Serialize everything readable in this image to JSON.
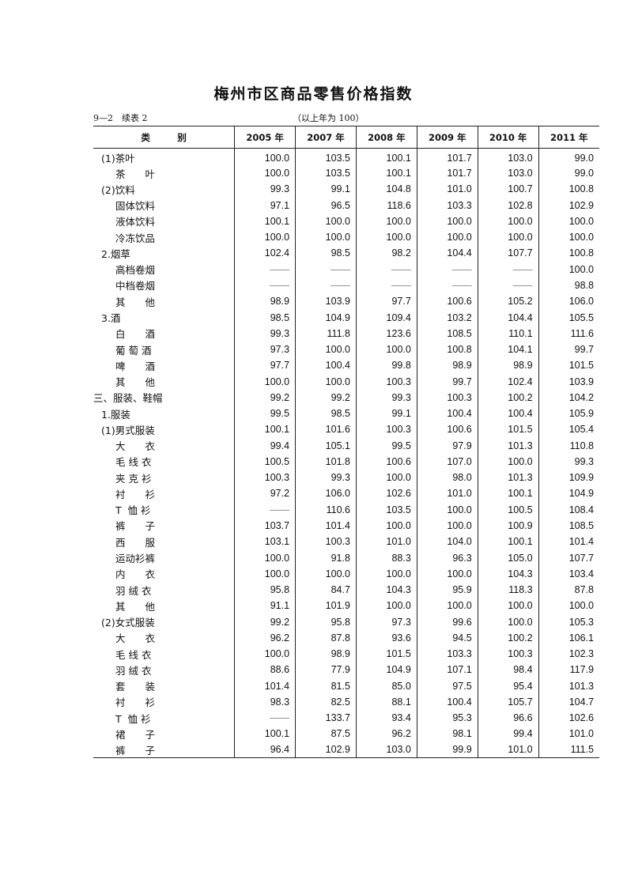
{
  "title": "梅州市区商品零售价格指数",
  "table_no": "9—2　续表 2",
  "base_note": "（以上年为 100）",
  "headers": [
    "类　　　别",
    "2005 年",
    "2007 年",
    "2008 年",
    "2009 年",
    "2010 年",
    "2011 年"
  ],
  "rows": [
    {
      "label": "(1)茶叶",
      "level": 1,
      "values": [
        "100.0",
        "103.5",
        "100.1",
        "101.7",
        "103.0",
        "99.0"
      ]
    },
    {
      "label": "茶　　叶",
      "level": 2,
      "values": [
        "100.0",
        "103.5",
        "100.1",
        "101.7",
        "103.0",
        "99.0"
      ]
    },
    {
      "label": "(2)饮料",
      "level": 1,
      "values": [
        "99.3",
        "99.1",
        "104.8",
        "101.0",
        "100.7",
        "100.8"
      ]
    },
    {
      "label": "固体饮料",
      "level": 2,
      "values": [
        "97.1",
        "96.5",
        "118.6",
        "103.3",
        "102.8",
        "102.9"
      ]
    },
    {
      "label": "液体饮料",
      "level": 2,
      "values": [
        "100.1",
        "100.0",
        "100.0",
        "100.0",
        "100.0",
        "100.0"
      ]
    },
    {
      "label": "冷冻饮品",
      "level": 2,
      "values": [
        "100.0",
        "100.0",
        "100.0",
        "100.0",
        "100.0",
        "100.0"
      ]
    },
    {
      "label": "2.烟草",
      "level": 1,
      "values": [
        "102.4",
        "98.5",
        "98.2",
        "104.4",
        "107.7",
        "100.8"
      ]
    },
    {
      "label": "高档卷烟",
      "level": 2,
      "values": [
        "——",
        "——",
        "——",
        "——",
        "——",
        "100.0"
      ]
    },
    {
      "label": "中档卷烟",
      "level": 2,
      "values": [
        "——",
        "——",
        "——",
        "——",
        "——",
        "98.8"
      ]
    },
    {
      "label": "其　　他",
      "level": 2,
      "values": [
        "98.9",
        "103.9",
        "97.7",
        "100.6",
        "105.2",
        "106.0"
      ]
    },
    {
      "label": "3.酒",
      "level": 1,
      "values": [
        "98.5",
        "104.9",
        "109.4",
        "103.2",
        "104.4",
        "105.5"
      ]
    },
    {
      "label": "白　　酒",
      "level": 2,
      "values": [
        "99.3",
        "111.8",
        "123.6",
        "108.5",
        "110.1",
        "111.6"
      ]
    },
    {
      "label": "葡 萄 酒",
      "level": 2,
      "values": [
        "97.3",
        "100.0",
        "100.0",
        "100.8",
        "104.1",
        "99.7"
      ]
    },
    {
      "label": "啤　　酒",
      "level": 2,
      "values": [
        "97.7",
        "100.4",
        "99.8",
        "98.9",
        "98.9",
        "101.5"
      ]
    },
    {
      "label": "其　　他",
      "level": 2,
      "values": [
        "100.0",
        "100.0",
        "100.3",
        "99.7",
        "102.4",
        "103.9"
      ]
    },
    {
      "label": "三、服装、鞋帽",
      "level": 0,
      "values": [
        "99.2",
        "99.2",
        "99.3",
        "100.3",
        "100.2",
        "104.2"
      ]
    },
    {
      "label": "1.服装",
      "level": 1,
      "values": [
        "99.5",
        "98.5",
        "99.1",
        "100.4",
        "100.4",
        "105.9"
      ]
    },
    {
      "label": "(1)男式服装",
      "level": 1,
      "values": [
        "100.1",
        "101.6",
        "100.3",
        "100.6",
        "101.5",
        "105.4"
      ]
    },
    {
      "label": "大　　衣",
      "level": 2,
      "values": [
        "99.4",
        "105.1",
        "99.5",
        "97.9",
        "101.3",
        "110.8"
      ]
    },
    {
      "label": "毛 线 衣",
      "level": 2,
      "values": [
        "100.5",
        "101.8",
        "100.6",
        "107.0",
        "100.0",
        "99.3"
      ]
    },
    {
      "label": "夹 克 衫",
      "level": 2,
      "values": [
        "100.3",
        "99.3",
        "100.0",
        "98.0",
        "101.3",
        "109.9"
      ]
    },
    {
      "label": "衬　　衫",
      "level": 2,
      "values": [
        "97.2",
        "106.0",
        "102.6",
        "101.0",
        "100.1",
        "104.9"
      ]
    },
    {
      "label": "T  恤 衫",
      "level": 2,
      "values": [
        "——",
        "110.6",
        "103.5",
        "100.0",
        "100.5",
        "108.4"
      ]
    },
    {
      "label": "裤　　子",
      "level": 2,
      "values": [
        "103.7",
        "101.4",
        "100.0",
        "100.0",
        "100.9",
        "108.5"
      ]
    },
    {
      "label": "西　　服",
      "level": 2,
      "values": [
        "103.1",
        "100.3",
        "101.0",
        "104.0",
        "100.1",
        "101.4"
      ]
    },
    {
      "label": "运动衫裤",
      "level": 2,
      "values": [
        "100.0",
        "91.8",
        "88.3",
        "96.3",
        "105.0",
        "107.7"
      ]
    },
    {
      "label": "内　　衣",
      "level": 2,
      "values": [
        "100.0",
        "100.0",
        "100.0",
        "100.0",
        "104.3",
        "103.4"
      ]
    },
    {
      "label": "羽 绒 衣",
      "level": 2,
      "values": [
        "95.8",
        "84.7",
        "104.3",
        "95.9",
        "118.3",
        "87.8"
      ]
    },
    {
      "label": "其　　他",
      "level": 2,
      "values": [
        "91.1",
        "101.9",
        "100.0",
        "100.0",
        "100.0",
        "100.0"
      ]
    },
    {
      "label": "(2)女式服装",
      "level": 1,
      "values": [
        "99.2",
        "95.8",
        "97.3",
        "99.6",
        "100.0",
        "105.3"
      ]
    },
    {
      "label": "大　　衣",
      "level": 2,
      "values": [
        "96.2",
        "87.8",
        "93.6",
        "94.5",
        "100.2",
        "106.1"
      ]
    },
    {
      "label": "毛 线 衣",
      "level": 2,
      "values": [
        "100.0",
        "98.9",
        "101.5",
        "103.3",
        "100.3",
        "102.3"
      ]
    },
    {
      "label": "羽 绒 衣",
      "level": 2,
      "values": [
        "88.6",
        "77.9",
        "104.9",
        "107.1",
        "98.4",
        "117.9"
      ]
    },
    {
      "label": "套　　装",
      "level": 2,
      "values": [
        "101.4",
        "81.5",
        "85.0",
        "97.5",
        "95.4",
        "101.3"
      ]
    },
    {
      "label": "衬　　衫",
      "level": 2,
      "values": [
        "98.3",
        "82.5",
        "88.1",
        "100.4",
        "105.7",
        "104.7"
      ]
    },
    {
      "label": "T  恤 衫",
      "level": 2,
      "values": [
        "——",
        "133.7",
        "93.4",
        "95.3",
        "96.6",
        "102.6"
      ]
    },
    {
      "label": "裙　　子",
      "level": 2,
      "values": [
        "100.1",
        "87.5",
        "96.2",
        "98.1",
        "99.4",
        "101.0"
      ]
    },
    {
      "label": "裤　　子",
      "level": 2,
      "values": [
        "96.4",
        "102.9",
        "103.0",
        "99.9",
        "101.0",
        "111.5"
      ]
    }
  ]
}
